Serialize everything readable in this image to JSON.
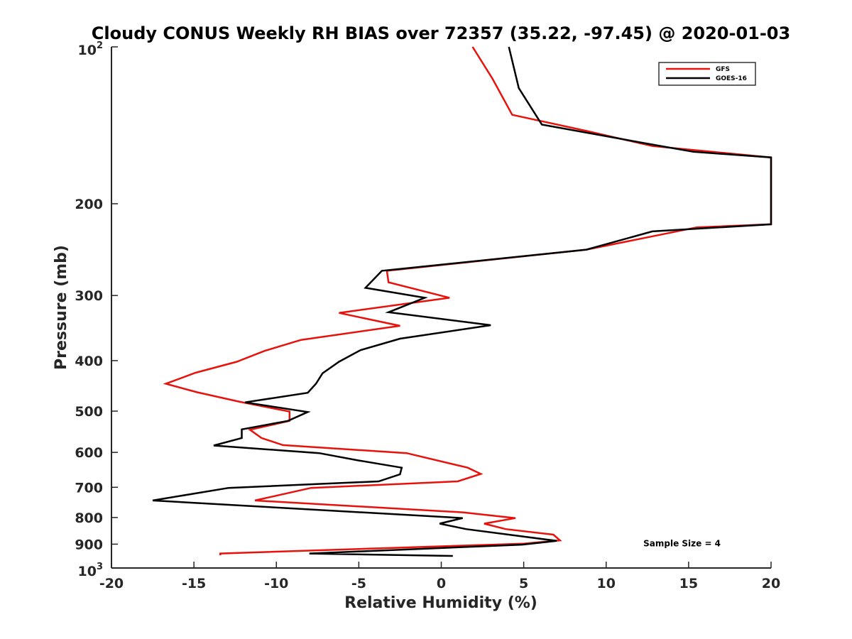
{
  "chart_data": {
    "type": "line",
    "title": "Cloudy CONUS Weekly RH BIAS over 72357 (35.22, -97.45) @ 2020-01-03",
    "xlabel": "Relative Humidity (%)",
    "ylabel": "Pressure (mb)",
    "xlim": [
      -20,
      20
    ],
    "ylim": [
      100,
      1000
    ],
    "y_scale": "log",
    "y_reversed": true,
    "x_ticks": [
      -20,
      -15,
      -10,
      -5,
      0,
      5,
      10,
      15,
      20
    ],
    "x_tick_labels": [
      "-20",
      "-15",
      "-10",
      "-5",
      "0",
      "5",
      "10",
      "15",
      "20"
    ],
    "y_ticks": [
      {
        "value": 100,
        "base": "10",
        "exp": "2"
      },
      {
        "value": 200,
        "label": "200"
      },
      {
        "value": 300,
        "label": "300"
      },
      {
        "value": 400,
        "label": "400"
      },
      {
        "value": 500,
        "label": "500"
      },
      {
        "value": 600,
        "label": "600"
      },
      {
        "value": 700,
        "label": "700"
      },
      {
        "value": 800,
        "label": "800"
      },
      {
        "value": 900,
        "label": "900"
      },
      {
        "value": 1000,
        "base": "10",
        "exp": "3"
      }
    ],
    "grid": false,
    "legend_position": "top-right",
    "series": [
      {
        "name": "GFS",
        "color": "#e8120c",
        "points": [
          [
            1.9,
            100
          ],
          [
            3.1,
            115
          ],
          [
            4.3,
            135
          ],
          [
            8.8,
            145
          ],
          [
            12.8,
            155
          ],
          [
            20,
            163
          ],
          [
            20,
            219
          ],
          [
            15.5,
            222
          ],
          [
            12.5,
            232
          ],
          [
            8.8,
            245
          ],
          [
            -3.3,
            269
          ],
          [
            -3.2,
            283
          ],
          [
            0.5,
            303
          ],
          [
            -6.2,
            324
          ],
          [
            -2.5,
            343
          ],
          [
            -8.5,
            365
          ],
          [
            -10.7,
            383
          ],
          [
            -12.4,
            402
          ],
          [
            -14.9,
            422
          ],
          [
            -16.7,
            443
          ],
          [
            -14.8,
            460
          ],
          [
            -12.2,
            480
          ],
          [
            -9.2,
            501
          ],
          [
            -9.2,
            522
          ],
          [
            -11.6,
            543
          ],
          [
            -10.9,
            563
          ],
          [
            -9.6,
            581
          ],
          [
            -2.1,
            602
          ],
          [
            1.6,
            642
          ],
          [
            2.4,
            660
          ],
          [
            1.0,
            682
          ],
          [
            -7.9,
            702
          ],
          [
            -11.3,
            742
          ],
          [
            1.3,
            782
          ],
          [
            4.5,
            802
          ],
          [
            2.6,
            822
          ],
          [
            3.9,
            842
          ],
          [
            6.8,
            863
          ],
          [
            7.2,
            885
          ],
          [
            5.0,
            898
          ],
          [
            -13.4,
            938
          ],
          [
            -13.4,
            945
          ]
        ]
      },
      {
        "name": "GOES-16",
        "color": "#000000",
        "points": [
          [
            4.1,
            100
          ],
          [
            4.7,
            120
          ],
          [
            6.1,
            141
          ],
          [
            12.8,
            154
          ],
          [
            15.3,
            159
          ],
          [
            20,
            163
          ],
          [
            20,
            219
          ],
          [
            12.8,
            226
          ],
          [
            8.8,
            245
          ],
          [
            -3.6,
            269
          ],
          [
            -4.6,
            290
          ],
          [
            -1.0,
            303
          ],
          [
            -3.2,
            323
          ],
          [
            3.0,
            342
          ],
          [
            -2.5,
            363
          ],
          [
            -4.9,
            382
          ],
          [
            -6.2,
            402
          ],
          [
            -7.2,
            423
          ],
          [
            -7.6,
            443
          ],
          [
            -8.1,
            461
          ],
          [
            -11.9,
            481
          ],
          [
            -8.1,
            502
          ],
          [
            -9.3,
            522
          ],
          [
            -12.1,
            542
          ],
          [
            -12.1,
            563
          ],
          [
            -13.8,
            582
          ],
          [
            -7.4,
            602
          ],
          [
            -5.0,
            622
          ],
          [
            -2.4,
            642
          ],
          [
            -2.5,
            661
          ],
          [
            -3.8,
            682
          ],
          [
            -12.9,
            702
          ],
          [
            -17.5,
            742
          ],
          [
            1.3,
            802
          ],
          [
            -0.1,
            822
          ],
          [
            1.5,
            842
          ],
          [
            7.0,
            887
          ],
          [
            4.9,
            902
          ],
          [
            -8.0,
            938
          ],
          [
            0.7,
            948
          ]
        ]
      }
    ],
    "annotations": [
      {
        "text": "Sample Size = 4",
        "x": 14.6,
        "y": 898
      }
    ]
  }
}
